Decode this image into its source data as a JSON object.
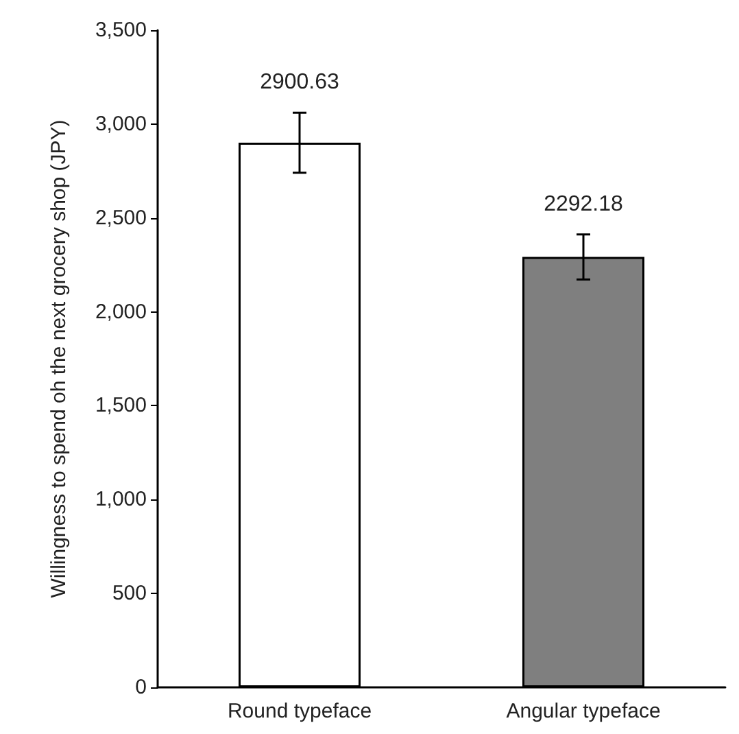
{
  "chart_data": {
    "type": "bar",
    "ylabel": "Willingness to spend oh the next grocery shop (JPY)",
    "categories": [
      "Round typeface",
      "Angular typeface"
    ],
    "values": [
      2900.63,
      2292.18
    ],
    "colors": [
      "#ffffff",
      "#7f7f7f"
    ],
    "errors": [
      160,
      120
    ],
    "ylim": [
      0,
      3500
    ],
    "yticks": [
      0,
      500,
      {
        "value": 1000,
        "label": "1,000"
      },
      {
        "value": 1500,
        "label": "1,500"
      },
      {
        "value": 2000,
        "label": "2,000"
      },
      {
        "value": 2500,
        "label": "2,500"
      },
      {
        "value": 3000,
        "label": "3,000"
      },
      {
        "value": 3500,
        "label": "3,500"
      }
    ],
    "grid": false,
    "data_labels": true
  }
}
